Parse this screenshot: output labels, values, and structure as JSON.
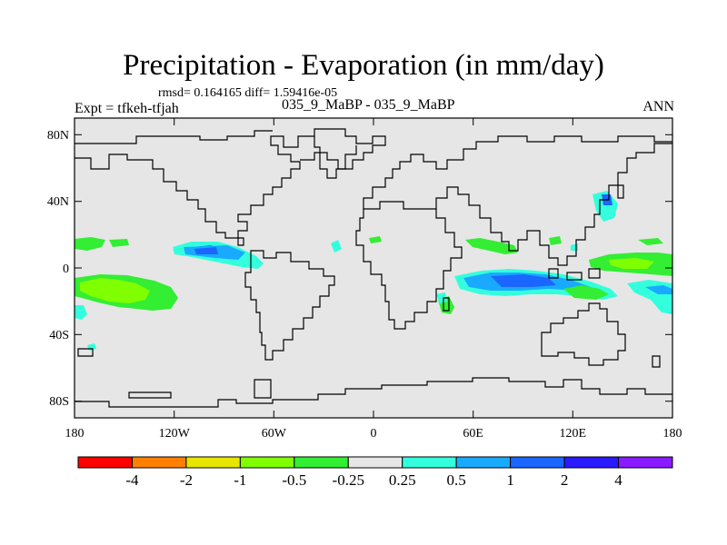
{
  "title": "Precipitation - Evaporation (in mm/day)",
  "stats_text": "rmsd= 0.164165 diff= 1.59416e-05",
  "case_text": "035_9_MaBP - 035_9_MaBP",
  "expt_text": "Expt = tfkeh-tfjah",
  "season_text": "ANN",
  "map": {
    "land_color": "#e6e6e6",
    "coastline_color": "#000000",
    "lon_ticks": [
      "180",
      "120W",
      "60W",
      "0",
      "60E",
      "120E",
      "180"
    ],
    "lat_ticks": [
      "80N",
      "40N",
      "0",
      "40S",
      "80S"
    ]
  },
  "colorbar": {
    "colors": [
      "#ff0000",
      "#ff8000",
      "#e6e600",
      "#80ff00",
      "#33ee33",
      "#e6e6e6",
      "#33ffdd",
      "#19aaff",
      "#1a66ff",
      "#2a1aff",
      "#8a1aff"
    ],
    "labels": [
      "-4",
      "-2",
      "-1",
      "-0.5",
      "-0.25",
      "0.25",
      "0.5",
      "1",
      "2",
      "4"
    ]
  },
  "field_colors": {
    "light_green": "#80ff00",
    "green": "#33ee33",
    "cyan": "#33ffdd",
    "light_blue": "#19aaff",
    "blue": "#1a66ff"
  }
}
